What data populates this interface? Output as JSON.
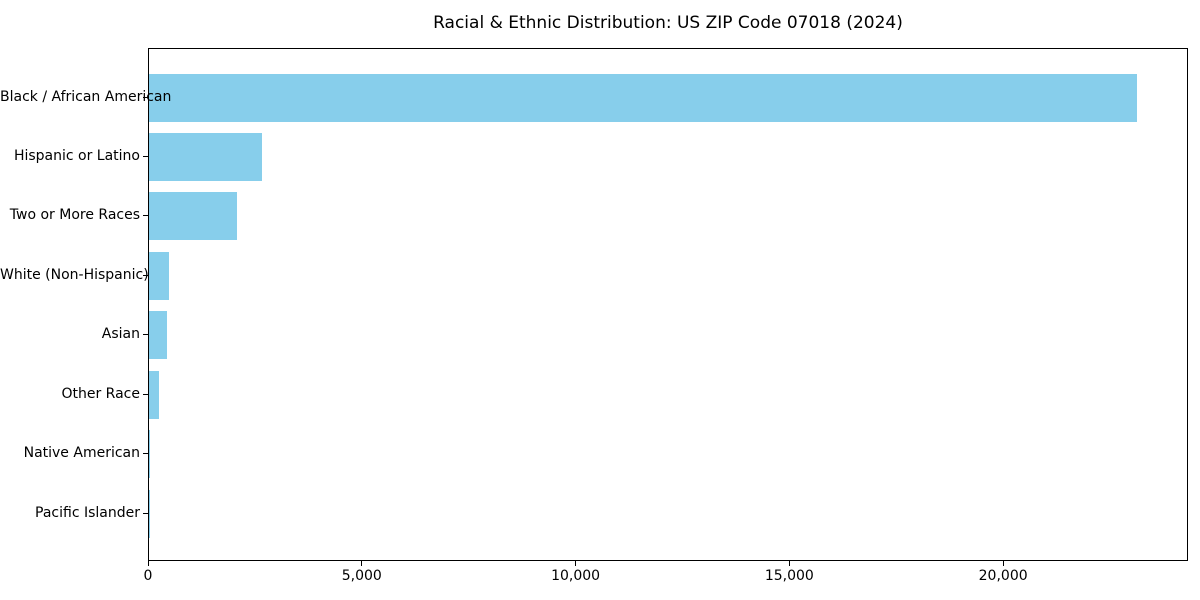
{
  "chart_data": {
    "type": "bar",
    "orientation": "horizontal",
    "title": "Racial & Ethnic Distribution: US ZIP Code 07018 (2024)",
    "categories": [
      "Black / African American",
      "Hispanic or Latino",
      "Two or More Races",
      "White (Non-Hispanic)",
      "Asian",
      "Other Race",
      "Native American",
      "Pacific Islander"
    ],
    "values": [
      23100,
      2640,
      2060,
      475,
      430,
      240,
      20,
      10
    ],
    "xlabel": "",
    "ylabel": "",
    "xlim": [
      0,
      24300
    ],
    "xticks": {
      "values": [
        0,
        5000,
        10000,
        15000,
        20000
      ],
      "labels": [
        "0",
        "5,000",
        "10,000",
        "15,000",
        "20,000"
      ]
    },
    "bar_color": "#87CEEB",
    "axis_color": "#000000",
    "text_color": "#000000",
    "background_color": "#FFFFFF",
    "grid": false,
    "legend": false
  }
}
